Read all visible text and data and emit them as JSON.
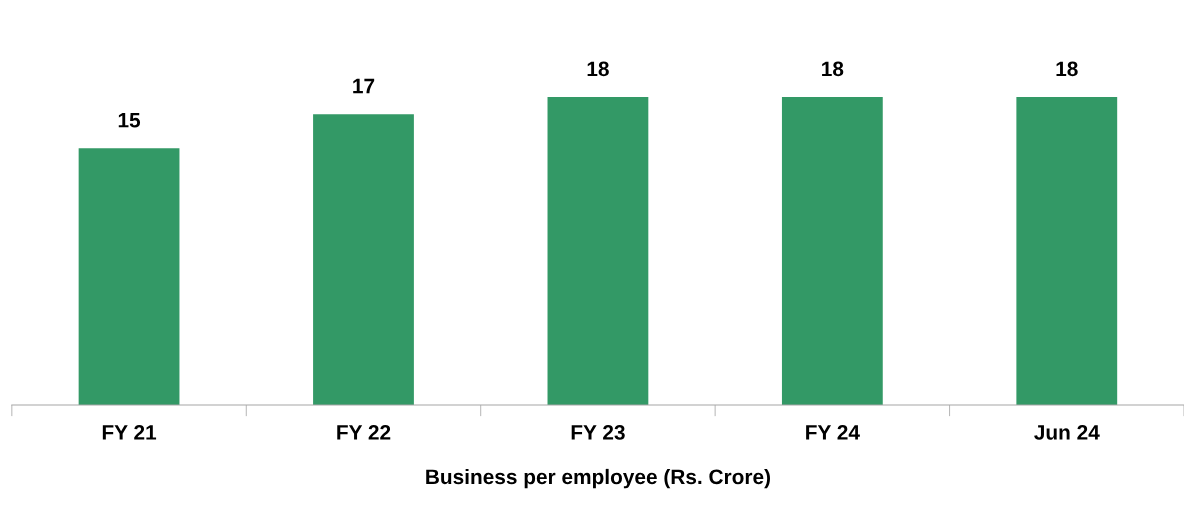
{
  "chart_data": {
    "type": "bar",
    "xlabel": "Business per employee (Rs. Crore)",
    "categories": [
      "FY 21",
      "FY 22",
      "FY 23",
      "FY 24",
      "Jun 24"
    ],
    "values": [
      15,
      17,
      18,
      18,
      18
    ],
    "color": "#339966",
    "data_labels": true
  }
}
